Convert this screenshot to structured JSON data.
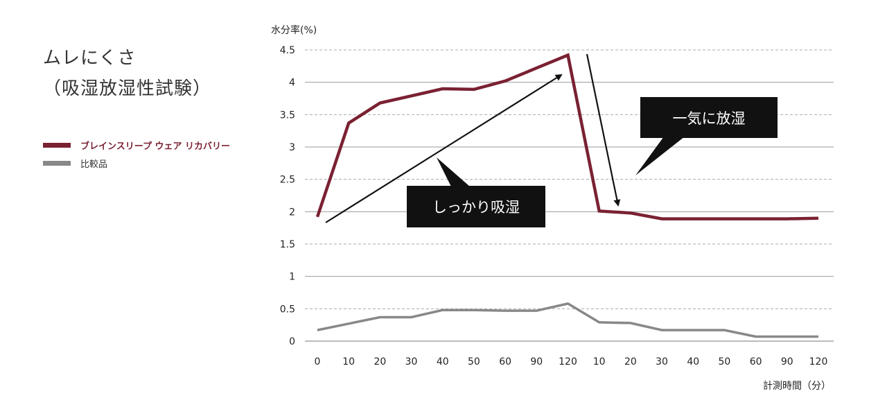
{
  "title": {
    "line1": "ムレにくさ",
    "line2": "（吸湿放湿性試験）"
  },
  "legend": [
    {
      "label": "ブレインスリープ ウェア リカバリー",
      "color": "#7a2132"
    },
    {
      "label": "比較品",
      "color": "#888888"
    }
  ],
  "chart_data": {
    "type": "line",
    "ylabel": "水分率(%)",
    "xlabel": "計測時間（分）",
    "ylim": [
      0,
      4.5
    ],
    "yticks": [
      "0",
      "0.5",
      "1",
      "1.5",
      "2",
      "2.5",
      "3",
      "3.5",
      "4",
      "4.5"
    ],
    "categories": [
      "0",
      "10",
      "20",
      "30",
      "40",
      "50",
      "60",
      "90",
      "120",
      "10",
      "20",
      "30",
      "40",
      "50",
      "60",
      "90",
      "120"
    ],
    "grid": true,
    "series": [
      {
        "name": "ブレインスリープ ウェア リカバリー",
        "color": "#7a2132",
        "values": [
          1.92,
          3.37,
          3.68,
          3.79,
          3.9,
          3.89,
          4.02,
          4.22,
          4.42,
          2.01,
          1.98,
          1.89,
          1.89,
          1.89,
          1.89,
          1.89,
          1.9
        ]
      },
      {
        "name": "比較品",
        "color": "#888888",
        "values": [
          0.17,
          0.27,
          0.37,
          0.37,
          0.48,
          0.48,
          0.47,
          0.47,
          0.58,
          0.29,
          0.28,
          0.17,
          0.17,
          0.17,
          0.07,
          0.07,
          0.07
        ]
      }
    ],
    "annotations": [
      {
        "text": "しっかり吸湿"
      },
      {
        "text": "一気に放湿"
      }
    ]
  }
}
